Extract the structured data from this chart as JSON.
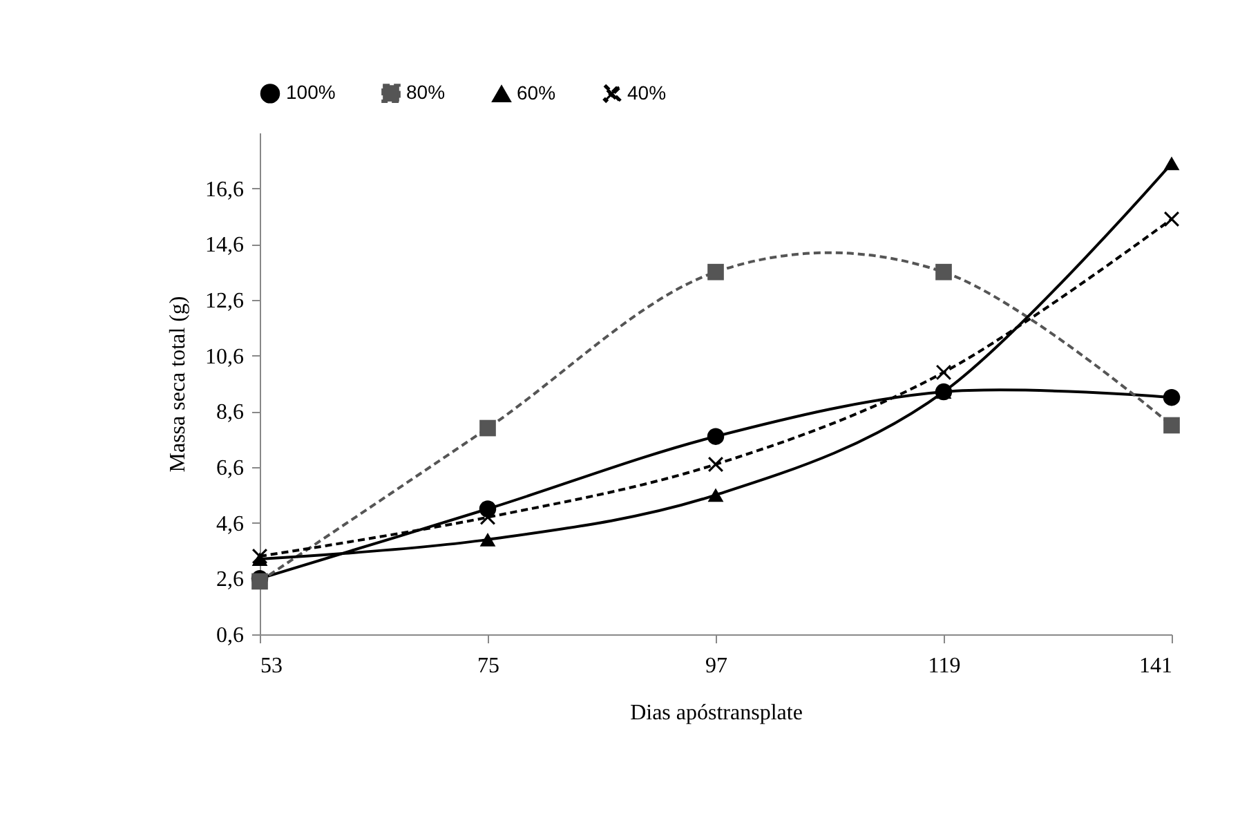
{
  "chart_data": {
    "type": "line",
    "xlabel": "Dias apóstransplate",
    "ylabel": "Massa seca total (g)",
    "x": [
      53,
      75,
      97,
      119,
      141
    ],
    "xlim": [
      53,
      141
    ],
    "xticks": [
      53,
      75,
      97,
      119,
      141
    ],
    "ylim": [
      0.6,
      18.6
    ],
    "yticks": [
      {
        "value": 0.6,
        "label": "0,6"
      },
      {
        "value": 2.6,
        "label": "2,6"
      },
      {
        "value": 4.6,
        "label": "4,6"
      },
      {
        "value": 6.6,
        "label": "6,6"
      },
      {
        "value": 8.6,
        "label": "8,6"
      },
      {
        "value": 10.6,
        "label": "10,6"
      },
      {
        "value": 12.6,
        "label": "12,6"
      },
      {
        "value": 14.6,
        "label": "14,6"
      },
      {
        "value": 16.6,
        "label": "16,6"
      }
    ],
    "grid": false,
    "legend": "top",
    "series": [
      {
        "name": "100%",
        "color": "#000000",
        "marker": "circle",
        "line_style": "solid",
        "values": [
          2.6,
          5.1,
          7.7,
          9.3,
          9.1
        ]
      },
      {
        "name": "80%",
        "color": "#555555",
        "marker": "square",
        "line_style": "dashed",
        "values": [
          2.5,
          8.0,
          13.6,
          13.6,
          8.1
        ]
      },
      {
        "name": "60%",
        "color": "#000000",
        "marker": "triangle",
        "line_style": "solid",
        "values": [
          3.3,
          4.0,
          5.6,
          9.3,
          17.5
        ]
      },
      {
        "name": "40%",
        "color": "#000000",
        "marker": "cross",
        "line_style": "dashed",
        "values": [
          3.4,
          4.8,
          6.7,
          10.0,
          15.5
        ]
      }
    ]
  }
}
